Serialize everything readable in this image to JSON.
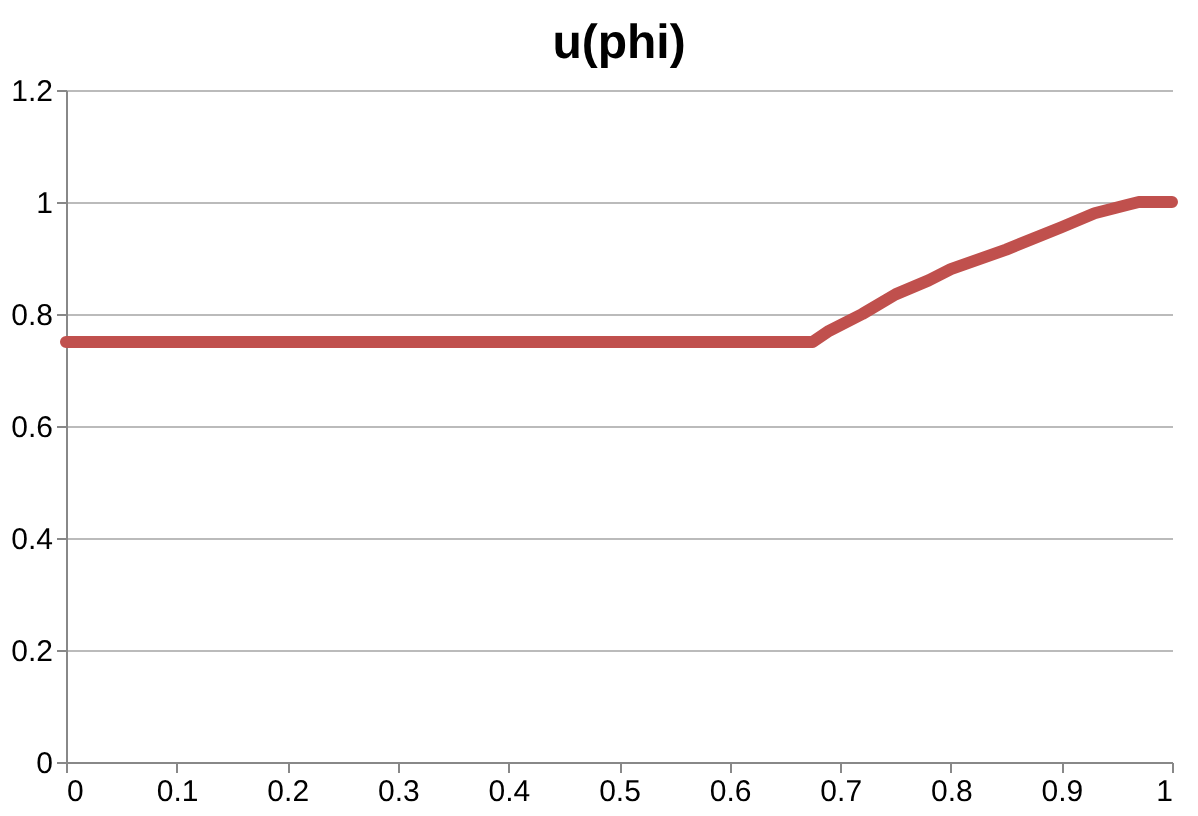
{
  "chart_data": {
    "type": "line",
    "title": "u(phi)",
    "x": [
      0,
      0.1,
      0.2,
      0.3,
      0.4,
      0.5,
      0.6,
      0.675,
      0.69,
      0.72,
      0.75,
      0.78,
      0.8,
      0.85,
      0.9,
      0.93,
      0.96,
      0.97,
      1
    ],
    "series": [
      {
        "color": "#c0504d",
        "values": [
          0.75,
          0.75,
          0.75,
          0.75,
          0.75,
          0.75,
          0.75,
          0.75,
          0.77,
          0.8,
          0.835,
          0.86,
          0.88,
          0.915,
          0.955,
          0.98,
          0.995,
          1.0,
          1.0
        ]
      }
    ],
    "xlim": [
      0,
      1
    ],
    "xticks": [
      0,
      0.1,
      0.2,
      0.3,
      0.4,
      0.5,
      0.6,
      0.7,
      0.8,
      0.9,
      1
    ],
    "ylim": [
      0,
      1.2
    ],
    "yticks": [
      0,
      0.2,
      0.4,
      0.6,
      0.8,
      1,
      1.2
    ],
    "grid": "y",
    "marker": "none",
    "line_style": "solid"
  }
}
